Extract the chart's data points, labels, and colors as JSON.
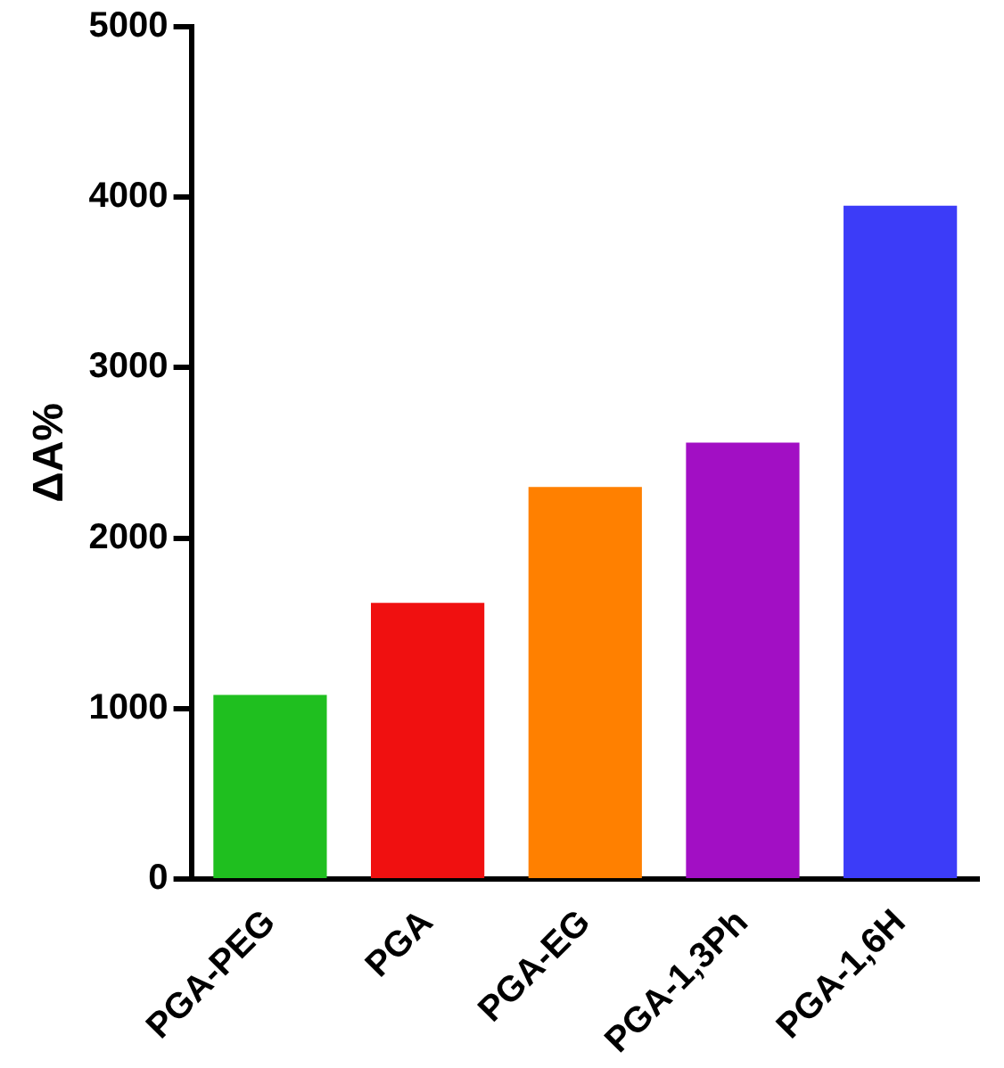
{
  "chart_data": {
    "type": "bar",
    "ylabel": "ΔA%",
    "categories": [
      "PGA-PEG",
      "PGA",
      "PGA-EG",
      "PGA-1,3Ph",
      "PGA-1,6H"
    ],
    "values": [
      1080,
      1620,
      2300,
      2560,
      3950
    ],
    "colors": [
      "#1fbf1f",
      "#f01010",
      "#ff8000",
      "#a20fc4",
      "#3c3cf8"
    ],
    "ylim": [
      0,
      5000
    ],
    "yticks": [
      0,
      1000,
      2000,
      3000,
      4000,
      5000
    ]
  }
}
